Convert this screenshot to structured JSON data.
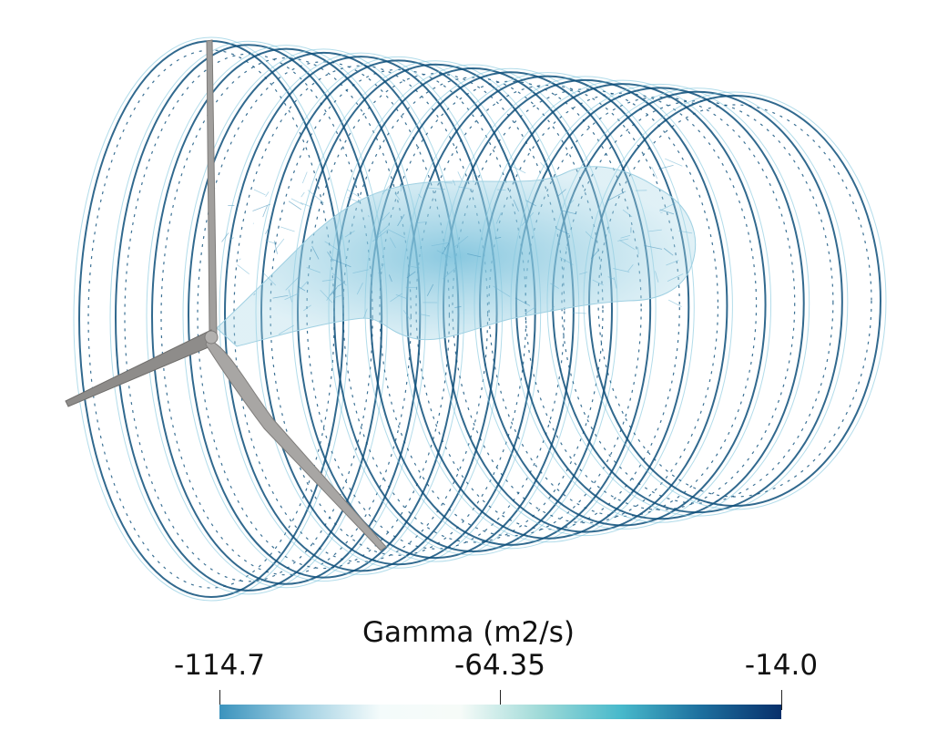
{
  "scene": {
    "view": "wind-turbine-wake-filament-rendering",
    "wake_color": "#0d4f7a",
    "wake_light_color": "#7fc4dc",
    "blade_color": "#9a9896"
  },
  "legend": {
    "title": "Gamma (m2/s)",
    "min_label": "-114.7",
    "mid_label": "-64.35",
    "max_label": "-14.0",
    "colormap": [
      "#3b93bd",
      "#9fcfe2",
      "#f4fbfb",
      "#f6fbf8",
      "#9fdad8",
      "#48b9cb",
      "#1d6f9e",
      "#08306b"
    ]
  }
}
